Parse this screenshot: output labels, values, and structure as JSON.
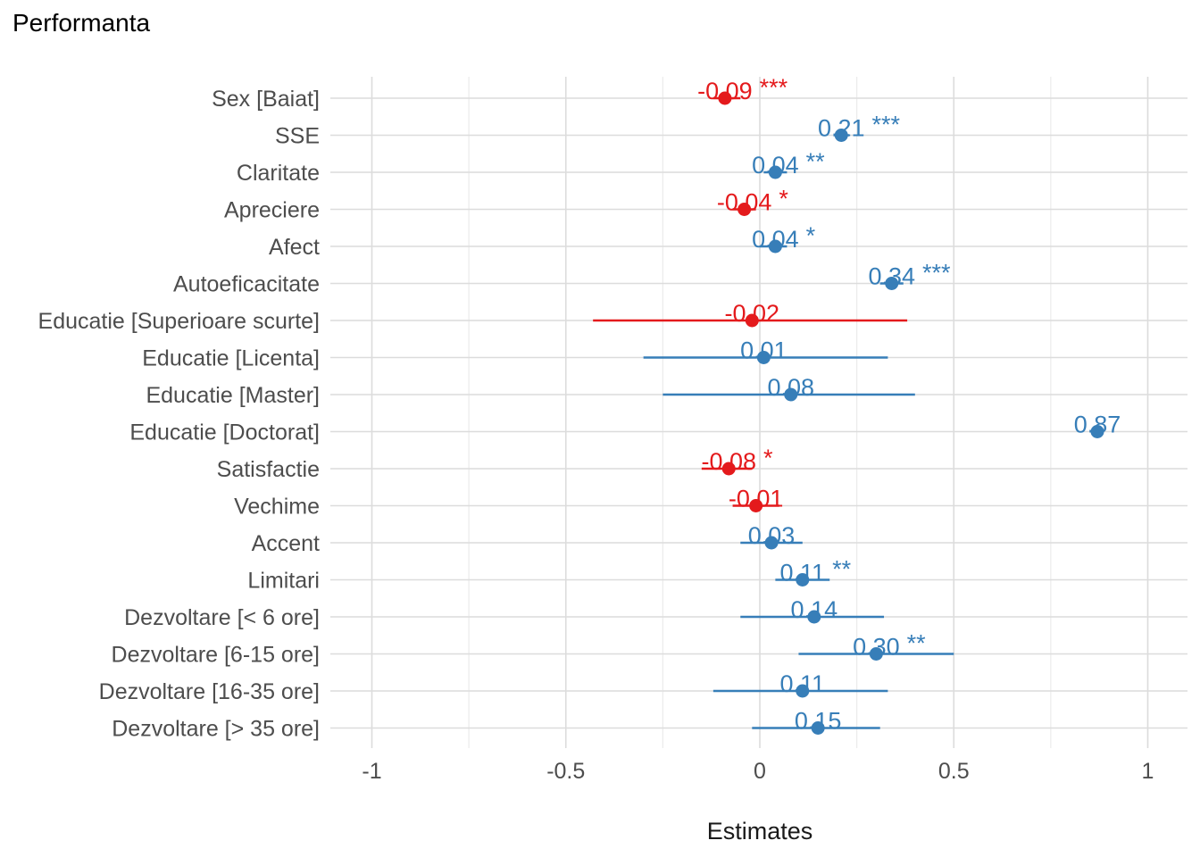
{
  "chart_data": {
    "type": "forest",
    "title": "Performanta",
    "xlabel": "Estimates",
    "xlim": [
      -1.1,
      1.1
    ],
    "x_ticks": [
      -1,
      -0.5,
      0,
      0.5,
      1
    ],
    "x_tick_labels": [
      "-1",
      "-0.5",
      "0",
      "0.5",
      "1"
    ],
    "grid": true,
    "colors": {
      "positive": "#377EB8",
      "negative": "#E41A1C"
    },
    "terms": [
      {
        "label": "Sex [Baiat]",
        "estimate": -0.09,
        "ci": [
          -0.12,
          -0.05
        ],
        "value_label": "-0.09",
        "stars": "***"
      },
      {
        "label": "SSE",
        "estimate": 0.21,
        "ci": [
          0.19,
          0.23
        ],
        "value_label": "0.21",
        "stars": "***"
      },
      {
        "label": "Claritate",
        "estimate": 0.04,
        "ci": [
          0.01,
          0.07
        ],
        "value_label": "0.04",
        "stars": "**"
      },
      {
        "label": "Apreciere",
        "estimate": -0.04,
        "ci": [
          -0.07,
          -0.01
        ],
        "value_label": "-0.04",
        "stars": "*"
      },
      {
        "label": "Afect",
        "estimate": 0.04,
        "ci": [
          0.0,
          0.07
        ],
        "value_label": "0.04",
        "stars": "*"
      },
      {
        "label": "Autoeficacitate",
        "estimate": 0.34,
        "ci": [
          0.31,
          0.37
        ],
        "value_label": "0.34",
        "stars": "***"
      },
      {
        "label": "Educatie [Superioare scurte]",
        "estimate": -0.02,
        "ci": [
          -0.43,
          0.38
        ],
        "value_label": "-0.02",
        "stars": ""
      },
      {
        "label": "Educatie [Licenta]",
        "estimate": 0.01,
        "ci": [
          -0.3,
          0.33
        ],
        "value_label": "0.01",
        "stars": ""
      },
      {
        "label": "Educatie [Master]",
        "estimate": 0.08,
        "ci": [
          -0.25,
          0.4
        ],
        "value_label": "0.08",
        "stars": ""
      },
      {
        "label": "Educatie [Doctorat]",
        "estimate": 0.87,
        "ci": [
          0.87,
          0.87
        ],
        "value_label": "0.87",
        "stars": ""
      },
      {
        "label": "Satisfactie",
        "estimate": -0.08,
        "ci": [
          -0.15,
          -0.02
        ],
        "value_label": "-0.08",
        "stars": "*"
      },
      {
        "label": "Vechime",
        "estimate": -0.01,
        "ci": [
          -0.07,
          0.05
        ],
        "value_label": "-0.01",
        "stars": ""
      },
      {
        "label": "Accent",
        "estimate": 0.03,
        "ci": [
          -0.05,
          0.11
        ],
        "value_label": "0.03",
        "stars": ""
      },
      {
        "label": "Limitari",
        "estimate": 0.11,
        "ci": [
          0.04,
          0.18
        ],
        "value_label": "0.11",
        "stars": "**"
      },
      {
        "label": "Dezvoltare [< 6 ore]",
        "estimate": 0.14,
        "ci": [
          -0.05,
          0.32
        ],
        "value_label": "0.14",
        "stars": ""
      },
      {
        "label": "Dezvoltare [6-15 ore]",
        "estimate": 0.3,
        "ci": [
          0.1,
          0.5
        ],
        "value_label": "0.30",
        "stars": "**"
      },
      {
        "label": "Dezvoltare [16-35 ore]",
        "estimate": 0.11,
        "ci": [
          -0.12,
          0.33
        ],
        "value_label": "0.11",
        "stars": ""
      },
      {
        "label": "Dezvoltare [> 35 ore]",
        "estimate": 0.15,
        "ci": [
          -0.02,
          0.31
        ],
        "value_label": "0.15",
        "stars": ""
      }
    ]
  }
}
